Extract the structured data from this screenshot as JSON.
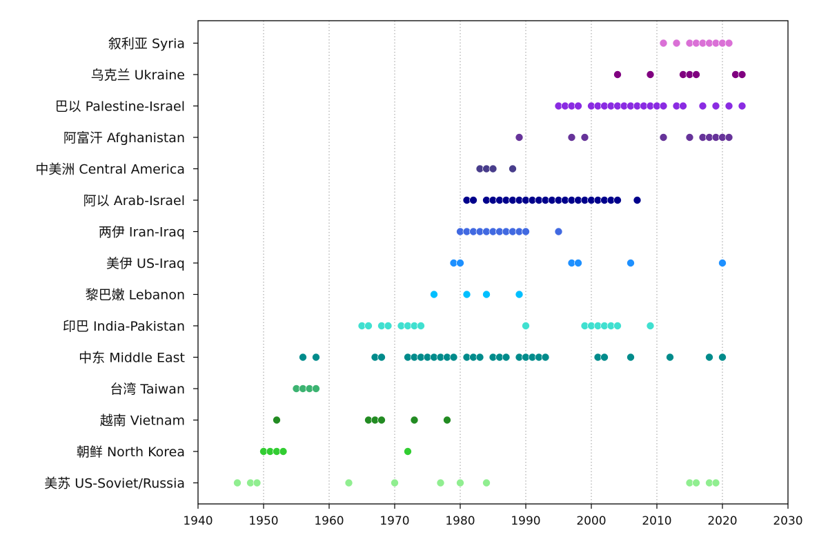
{
  "chart_data": {
    "type": "scatter",
    "title": "",
    "xlabel": "",
    "ylabel": "",
    "xlim": [
      1940,
      2030
    ],
    "xticks": [
      1940,
      1950,
      1960,
      1970,
      1980,
      1990,
      2000,
      2010,
      2020,
      2030
    ],
    "xtick_labels": [
      "1940",
      "1950",
      "1960",
      "1970",
      "1980",
      "1990",
      "2000",
      "2010",
      "2020",
      "2030"
    ],
    "grid": "vertical dotted at x ticks",
    "legend": "none",
    "series": [
      {
        "name": "美苏 US-Soviet/Russia",
        "color": "#90ee90",
        "x": [
          1946,
          1948,
          1949,
          1963,
          1970,
          1977,
          1980,
          1984,
          2015,
          2016,
          2018,
          2019
        ]
      },
      {
        "name": "朝鲜 North Korea",
        "color": "#32cd32",
        "x": [
          1950,
          1951,
          1952,
          1953,
          1972
        ]
      },
      {
        "name": "越南 Vietnam",
        "color": "#228b22",
        "x": [
          1952,
          1966,
          1967,
          1968,
          1973,
          1978
        ]
      },
      {
        "name": "台湾 Taiwan",
        "color": "#3cb371",
        "x": [
          1955,
          1956,
          1957,
          1958
        ]
      },
      {
        "name": "中东 Middle East",
        "color": "#008b8b",
        "x": [
          1956,
          1958,
          1967,
          1968,
          1972,
          1973,
          1974,
          1975,
          1976,
          1977,
          1978,
          1979,
          1981,
          1982,
          1983,
          1985,
          1986,
          1987,
          1989,
          1990,
          1991,
          1992,
          1993,
          2001,
          2002,
          2006,
          2012,
          2018,
          2020
        ]
      },
      {
        "name": "印巴 India-Pakistan",
        "color": "#40e0d0",
        "x": [
          1965,
          1966,
          1968,
          1969,
          1971,
          1972,
          1973,
          1974,
          1990,
          1999,
          2000,
          2001,
          2002,
          2003,
          2004,
          2009
        ]
      },
      {
        "name": "黎巴嫩 Lebanon",
        "color": "#00bfff",
        "x": [
          1976,
          1981,
          1984,
          1989
        ]
      },
      {
        "name": "美伊 US-Iraq",
        "color": "#1e90ff",
        "x": [
          1979,
          1980,
          1997,
          1998,
          2006,
          2020
        ]
      },
      {
        "name": "两伊 Iran-Iraq",
        "color": "#4169e1",
        "x": [
          1980,
          1981,
          1982,
          1983,
          1984,
          1985,
          1986,
          1987,
          1988,
          1989,
          1990,
          1995
        ]
      },
      {
        "name": "阿以 Arab-Israel",
        "color": "#00008b",
        "x": [
          1981,
          1982,
          1984,
          1985,
          1986,
          1987,
          1988,
          1989,
          1990,
          1991,
          1992,
          1993,
          1994,
          1995,
          1996,
          1997,
          1998,
          1999,
          2000,
          2001,
          2002,
          2003,
          2004,
          2007
        ]
      },
      {
        "name": "中美洲 Central America",
        "color": "#483d8b",
        "x": [
          1983,
          1984,
          1985,
          1988
        ]
      },
      {
        "name": "阿富汗 Afghanistan",
        "color": "#663399",
        "x": [
          1989,
          1997,
          1999,
          2011,
          2015,
          2017,
          2018,
          2019,
          2020,
          2021
        ]
      },
      {
        "name": "巴以 Palestine-Israel",
        "color": "#8a2be2",
        "x": [
          1995,
          1996,
          1997,
          1998,
          2000,
          2001,
          2002,
          2003,
          2004,
          2005,
          2006,
          2007,
          2008,
          2009,
          2010,
          2011,
          2013,
          2014,
          2017,
          2019,
          2021,
          2023
        ]
      },
      {
        "name": "乌克兰 Ukraine",
        "color": "#800080",
        "x": [
          2004,
          2009,
          2014,
          2015,
          2016,
          2022,
          2023
        ]
      },
      {
        "name": "叙利亚 Syria",
        "color": "#da70d6",
        "x": [
          2011,
          2013,
          2015,
          2016,
          2017,
          2018,
          2019,
          2020,
          2021
        ]
      }
    ]
  }
}
